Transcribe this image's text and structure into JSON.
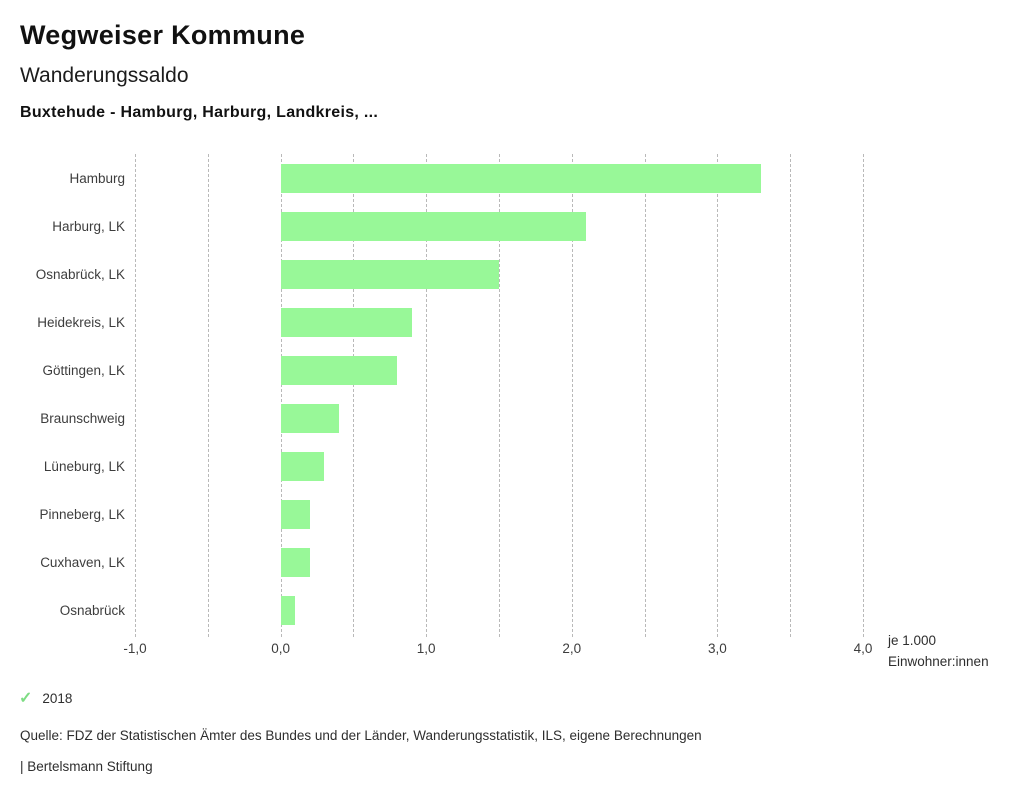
{
  "header": {
    "title": "Wegweiser Kommune",
    "subtitle": "Wanderungssaldo",
    "location": "Buxtehude - Hamburg, Harburg, Landkreis, ..."
  },
  "chart_data": {
    "type": "bar",
    "orientation": "horizontal",
    "categories": [
      "Hamburg",
      "Harburg, LK",
      "Osnabrück, LK",
      "Heidekreis, LK",
      "Göttingen, LK",
      "Braunschweig",
      "Lüneburg, LK",
      "Pinneberg, LK",
      "Cuxhaven, LK",
      "Osnabrück"
    ],
    "series": [
      {
        "name": "2018",
        "values": [
          3.3,
          2.1,
          1.5,
          0.9,
          0.8,
          0.4,
          0.3,
          0.2,
          0.2,
          0.1
        ]
      }
    ],
    "xlim": [
      -1.0,
      4.0
    ],
    "x_ticks": [
      -1.0,
      0.0,
      1.0,
      2.0,
      3.0,
      4.0
    ],
    "x_tick_labels": [
      "-1,0",
      "0,0",
      "1,0",
      "2,0",
      "3,0",
      "4,0"
    ],
    "minor_grid_step": 0.5,
    "grid": true,
    "bar_color": "#98f898",
    "xlabel_lines": [
      "je 1.000",
      "Einwohner:innen"
    ],
    "legend_position": "bottom-left"
  },
  "legend": {
    "check_icon": "✓",
    "check_color": "#7edc84",
    "year_label": "2018"
  },
  "footer": {
    "source": "Quelle: FDZ der Statistischen Ämter des Bundes und der Länder, Wanderungsstatistik, ILS, eigene Berechnungen",
    "branding": "| Bertelsmann Stiftung"
  }
}
